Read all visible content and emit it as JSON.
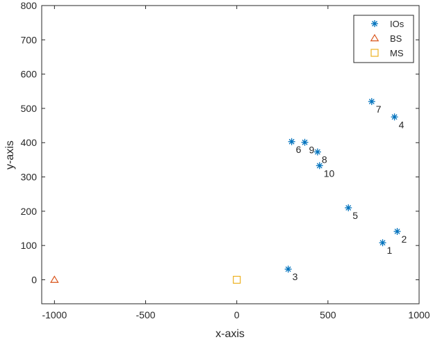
{
  "chart_data": {
    "type": "scatter",
    "xlabel": "x-axis",
    "ylabel": "y-axis",
    "xlim": [
      -1070,
      1000
    ],
    "ylim": [
      -70,
      800
    ],
    "xticks": [
      -1000,
      -500,
      0,
      500,
      1000
    ],
    "yticks": [
      0,
      100,
      200,
      300,
      400,
      500,
      600,
      700,
      800
    ],
    "grid": false,
    "legend_position": "top-right",
    "series": [
      {
        "name": "IOs",
        "marker": "asterisk",
        "color": "#0072BD",
        "points": [
          {
            "x": 800,
            "y": 108,
            "label": "1"
          },
          {
            "x": 880,
            "y": 141,
            "label": "2"
          },
          {
            "x": 282,
            "y": 31,
            "label": "3"
          },
          {
            "x": 865,
            "y": 475,
            "label": "4"
          },
          {
            "x": 612,
            "y": 210,
            "label": "5"
          },
          {
            "x": 301,
            "y": 403,
            "label": "6"
          },
          {
            "x": 740,
            "y": 520,
            "label": "7"
          },
          {
            "x": 443,
            "y": 373,
            "label": "8"
          },
          {
            "x": 373,
            "y": 401,
            "label": "9"
          },
          {
            "x": 454,
            "y": 333,
            "label": "10"
          }
        ]
      },
      {
        "name": "BS",
        "marker": "triangle",
        "color": "#D95319",
        "points": [
          {
            "x": -1000,
            "y": 0
          }
        ]
      },
      {
        "name": "MS",
        "marker": "square",
        "color": "#EDB120",
        "points": [
          {
            "x": 0,
            "y": 0
          }
        ]
      }
    ]
  }
}
